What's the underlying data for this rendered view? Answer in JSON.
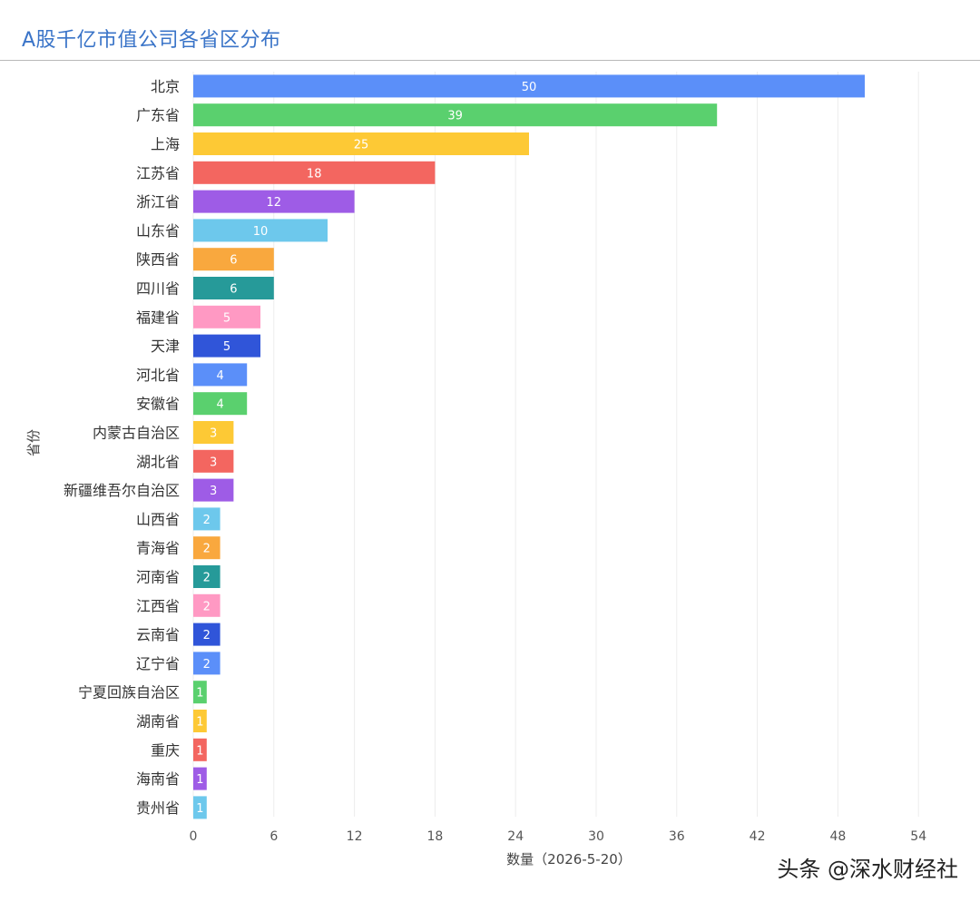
{
  "footer": {
    "credit": "头条 @深水财经社"
  },
  "chart_data": {
    "type": "bar",
    "orientation": "horizontal",
    "title": "A股千亿市值公司各省区分布",
    "xlabel": "数量（2026-5-20）",
    "ylabel": "省份",
    "xlim": [
      0,
      54
    ],
    "xticks": [
      0,
      6,
      12,
      18,
      24,
      30,
      36,
      42,
      48,
      54
    ],
    "grid": "vertical",
    "data_labels": true,
    "categories": [
      "北京",
      "广东省",
      "上海",
      "江苏省",
      "浙江省",
      "山东省",
      "陕西省",
      "四川省",
      "福建省",
      "天津",
      "河北省",
      "安徽省",
      "内蒙古自治区",
      "湖北省",
      "新疆维吾尔自治区",
      "山西省",
      "青海省",
      "河南省",
      "江西省",
      "云南省",
      "辽宁省",
      "宁夏回族自治区",
      "湖南省",
      "重庆",
      "海南省",
      "贵州省"
    ],
    "values": [
      50,
      39,
      25,
      18,
      12,
      10,
      6,
      6,
      5,
      5,
      4,
      4,
      3,
      3,
      3,
      2,
      2,
      2,
      2,
      2,
      2,
      1,
      1,
      1,
      1,
      1
    ],
    "colors": [
      "#5b8ff9",
      "#5ad06e",
      "#fdc935",
      "#f36660",
      "#9e5ce6",
      "#6dc8ec",
      "#f9a83e",
      "#269a99",
      "#ff99c3",
      "#3055d9",
      "#5b8ff9",
      "#5ad06e",
      "#fdc935",
      "#f36660",
      "#9e5ce6",
      "#6dc8ec",
      "#f9a83e",
      "#269a99",
      "#ff99c3",
      "#3055d9",
      "#5b8ff9",
      "#5ad06e",
      "#fdc935",
      "#f36660",
      "#9e5ce6",
      "#6dc8ec"
    ]
  }
}
